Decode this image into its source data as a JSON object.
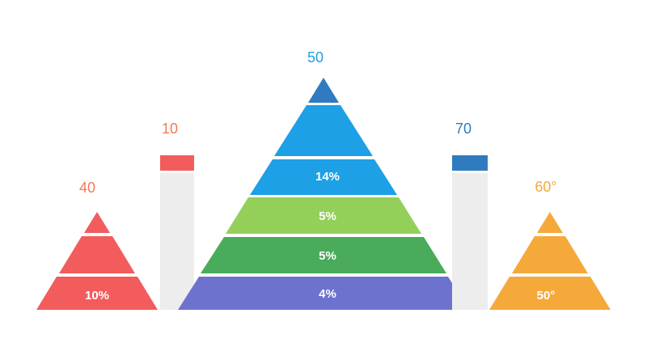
{
  "left_pyramid": {
    "top_label": "40",
    "band_label": "10%"
  },
  "left_bar": {
    "label": "10"
  },
  "center_pyramid": {
    "top_label": "50",
    "band_labels": [
      "14%",
      "5%",
      "5%",
      "4%"
    ]
  },
  "right_bar": {
    "label": "70"
  },
  "right_pyramid": {
    "top_label": "60°",
    "band_label": "50°"
  }
}
